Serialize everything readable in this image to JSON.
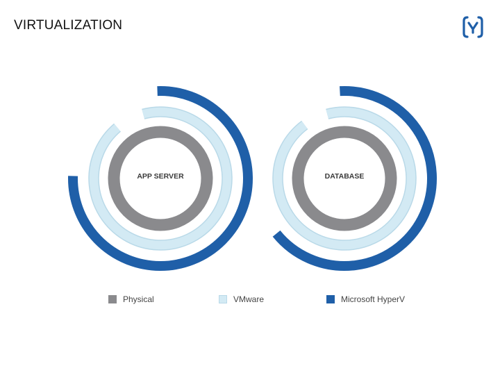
{
  "header": {
    "title": "VIRTUALIZATION",
    "logo_icon": "bracket-gamma-logo",
    "logo_color": "#1f5fa8"
  },
  "chart_data": [
    {
      "type": "radial-bar",
      "center_label": "APP SERVER",
      "series": [
        {
          "name": "Physical",
          "value": 1.0
        },
        {
          "name": "VMware",
          "value": 0.93
        },
        {
          "name": "Microsoft Hyper V",
          "value": 0.76
        }
      ]
    },
    {
      "type": "radial-bar",
      "center_label": "DATABASE",
      "series": [
        {
          "name": "Physical",
          "value": 1.0
        },
        {
          "name": "VMware",
          "value": 0.94
        },
        {
          "name": "Microsoft Hyper V",
          "value": 0.65
        }
      ]
    }
  ],
  "legend": [
    {
      "label": "Physical",
      "color": "#8a8a8d"
    },
    {
      "label": "VMware",
      "color": "#d3eaf4"
    },
    {
      "label": "Microsoft HyperV",
      "color": "#1f5fa8"
    }
  ],
  "colors": {
    "physical": "#8a8a8d",
    "vmware": "#d3eaf4",
    "vmware_stroke": "#b9d9e8",
    "hyperv": "#1f5fa8"
  }
}
